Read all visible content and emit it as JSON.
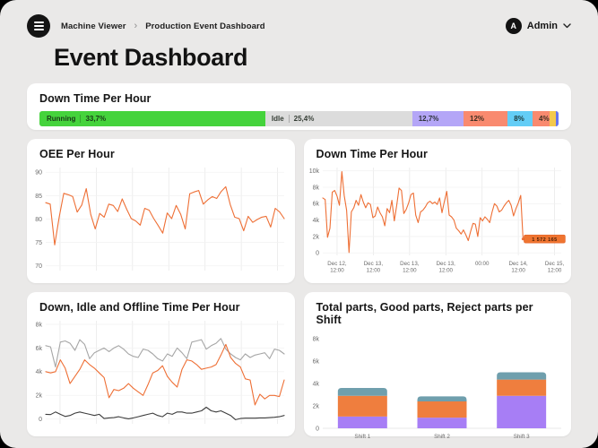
{
  "colors": {
    "page_background": "#eae9e8",
    "card_background": "#ffffff",
    "accent_orange": "#ee6f35",
    "running_green": "#45d33c",
    "idle_gray": "#dcdcdc",
    "purple": "#b4a6f7",
    "coral": "#f98a6f",
    "cyan": "#63cdf6",
    "yellow": "#f4c94c",
    "indigo": "#6775ef"
  },
  "topbar": {
    "menu_icon": "hamburger-icon",
    "breadcrumb": [
      "Machine Viewer",
      "Production Event Dashboard"
    ],
    "breadcrumb_separator": "›",
    "user": {
      "avatar_initial": "A",
      "name": "Admin",
      "chevron_icon": "chevron-down-icon"
    }
  },
  "page_title": "Event Dashboard",
  "downtime_bar_card": {
    "title": "Down Time Per Hour",
    "segments": [
      {
        "label": "Running",
        "value": "33,7%",
        "color": "#45d33c",
        "width_pct": 43.5
      },
      {
        "label": "Idle",
        "value": "25,4%",
        "color": "#dcdcdc",
        "width_pct": 28.3
      },
      {
        "label": "",
        "value": "12,7%",
        "color": "#b4a6f7",
        "width_pct": 9.9
      },
      {
        "label": "",
        "value": "12%",
        "color": "#f98a6f",
        "width_pct": 8.5
      },
      {
        "label": "",
        "value": "8%",
        "color": "#63cdf6",
        "width_pct": 4.8
      },
      {
        "label": "",
        "value": "4%",
        "color": "#f98a6f",
        "width_pct": 3.2
      },
      {
        "label": "",
        "value": "",
        "color": "#f4c94c",
        "width_pct": 0.8
      },
      {
        "label": "",
        "value": "",
        "color": "#6775ef",
        "width_pct": 1.0
      }
    ]
  },
  "chart_data": [
    {
      "id": "oee",
      "type": "line",
      "title": "OEE Per Hour",
      "ylim": [
        69,
        91
      ],
      "yticks": [
        {
          "v": 70,
          "label": "70"
        },
        {
          "v": 75,
          "label": "75"
        },
        {
          "v": 80,
          "label": "80"
        },
        {
          "v": 85,
          "label": "85"
        },
        {
          "v": 90,
          "label": "90"
        }
      ],
      "vgrid": 7,
      "line_color": "#ee6f35",
      "values": [
        83.5,
        83.2,
        74.5,
        80.5,
        85.5,
        85.2,
        84.8,
        81.5,
        83.0,
        86.5,
        81.0,
        77.9,
        81.2,
        80.4,
        83.2,
        82.9,
        81.6,
        84.3,
        82.1,
        80.1,
        79.6,
        78.7,
        82.3,
        81.9,
        80.1,
        78.6,
        77.0,
        81.3,
        80.1,
        82.9,
        81.0,
        77.9,
        85.4,
        85.8,
        86.1,
        83.2,
        84.1,
        84.8,
        84.4,
        85.9,
        86.9,
        83.1,
        80.4,
        80.1,
        77.5,
        80.6,
        79.3,
        79.9,
        80.4,
        80.6,
        78.3,
        82.3,
        81.5,
        80.1
      ]
    },
    {
      "id": "downtime",
      "type": "line",
      "title": "Down Time Per Hour",
      "ylim": [
        -300,
        10400
      ],
      "yticks": [
        {
          "v": 0,
          "label": "0"
        },
        {
          "v": 2000,
          "label": "2k"
        },
        {
          "v": 4000,
          "label": "4k"
        },
        {
          "v": 6000,
          "label": "6k"
        },
        {
          "v": 8000,
          "label": "8k"
        },
        {
          "v": 10000,
          "label": "10k"
        }
      ],
      "vgrid": 7,
      "xticks": [
        {
          "l1": "Dec 12,",
          "l2": "12:00"
        },
        {
          "l1": "Dec 13,",
          "l2": "12:00"
        },
        {
          "l1": "Dec 13,",
          "l2": "12:00"
        },
        {
          "l1": "Dec 13,",
          "l2": "12:00"
        },
        {
          "l1": "00:00",
          "l2": ""
        },
        {
          "l1": "Dec 14,",
          "l2": "12:00"
        },
        {
          "l1": "Dec 15,",
          "l2": "12:00"
        }
      ],
      "line_color": "#ee6f35",
      "x_end_frac": 0.84,
      "end_label": "1 572 165",
      "end_label_bg": "#ef7430",
      "values": [
        6700,
        6500,
        1900,
        3000,
        7400,
        7600,
        6900,
        5800,
        9900,
        7000,
        5200,
        50,
        5000,
        5500,
        6400,
        5800,
        7100,
        6200,
        5500,
        6100,
        5900,
        4300,
        4500,
        5600,
        4900,
        4400,
        3300,
        5400,
        4900,
        6400,
        3900,
        5800,
        7900,
        7600,
        4800,
        5300,
        6100,
        7100,
        7300,
        4600,
        3700,
        5000,
        5200,
        5600,
        6100,
        6300,
        6000,
        6200,
        5900,
        6700,
        4900,
        6300,
        7500,
        4600,
        4400,
        4000,
        3000,
        2700,
        2300,
        2800,
        2200,
        1500,
        2600,
        3600,
        3500,
        2000,
        4300,
        3900,
        4400,
        4100,
        3700,
        5000,
        6000,
        5700,
        5000,
        5200,
        5700,
        6100,
        6400,
        5800,
        4500,
        5400,
        6100,
        7000,
        1700
      ]
    },
    {
      "id": "dio",
      "type": "line",
      "title": "Down, Idle and Offline Time Per Hour",
      "ylim": [
        -400,
        8300
      ],
      "yticks": [
        {
          "v": 0,
          "label": "0"
        },
        {
          "v": 2000,
          "label": "2k"
        },
        {
          "v": 4000,
          "label": "4k"
        },
        {
          "v": 6000,
          "label": "6k"
        },
        {
          "v": 8000,
          "label": "8k"
        }
      ],
      "vgrid": 7,
      "series": [
        {
          "color": "#a6a6a6",
          "values": [
            6200,
            6100,
            4400,
            6500,
            6600,
            6400,
            5800,
            6700,
            6300,
            5100,
            5600,
            5800,
            6000,
            5700,
            6000,
            6200,
            5900,
            5500,
            5300,
            5200,
            5900,
            5800,
            5500,
            5100,
            4900,
            5500,
            5300,
            6000,
            5600,
            5100,
            6500,
            6600,
            6700,
            5900,
            6200,
            6400,
            6800,
            5900,
            5500,
            5200,
            5000,
            5500,
            5200,
            5400,
            5500,
            5600,
            5100,
            5900,
            5800,
            5500
          ]
        },
        {
          "color": "#ee6f35",
          "values": [
            4000,
            3900,
            4000,
            5000,
            4300,
            3000,
            3600,
            4200,
            5000,
            4600,
            4300,
            3900,
            3500,
            1800,
            2500,
            2400,
            2600,
            3000,
            2600,
            2300,
            2000,
            2900,
            3900,
            4100,
            4500,
            3600,
            3100,
            2700,
            4200,
            5000,
            4900,
            4600,
            4200,
            4300,
            4400,
            4600,
            5400,
            6300,
            5200,
            4700,
            4400,
            3400,
            3300,
            1200,
            2100,
            1700,
            2000,
            2000,
            1900,
            3300
          ]
        },
        {
          "color": "#3d3d3d",
          "values": [
            400,
            380,
            600,
            400,
            220,
            300,
            500,
            600,
            500,
            400,
            300,
            400,
            50,
            100,
            120,
            200,
            100,
            20,
            100,
            200,
            300,
            400,
            500,
            300,
            200,
            500,
            400,
            600,
            600,
            500,
            500,
            600,
            700,
            1000,
            700,
            600,
            700,
            500,
            300,
            -50,
            50,
            80,
            80,
            80,
            100,
            100,
            120,
            150,
            200,
            300
          ]
        }
      ]
    },
    {
      "id": "parts",
      "type": "bar",
      "title": "Total parts, Good parts, Reject parts per Shift",
      "categories": [
        "Shift 1",
        "Shift 2",
        "Shift 3"
      ],
      "ylim": [
        0,
        8400
      ],
      "yticks": [
        {
          "v": 0,
          "label": "0"
        },
        {
          "v": 2000,
          "label": "2k"
        },
        {
          "v": 4000,
          "label": "4k"
        },
        {
          "v": 6000,
          "label": "6k"
        },
        {
          "v": 8000,
          "label": "8k"
        }
      ],
      "series": [
        {
          "color": "#a77ef5",
          "values": [
            1050,
            950,
            2900
          ]
        },
        {
          "color": "#ef7e3e",
          "values": [
            1850,
            1450,
            1450
          ]
        },
        {
          "color": "#6f9fad",
          "values": [
            700,
            450,
            650
          ]
        }
      ]
    }
  ]
}
